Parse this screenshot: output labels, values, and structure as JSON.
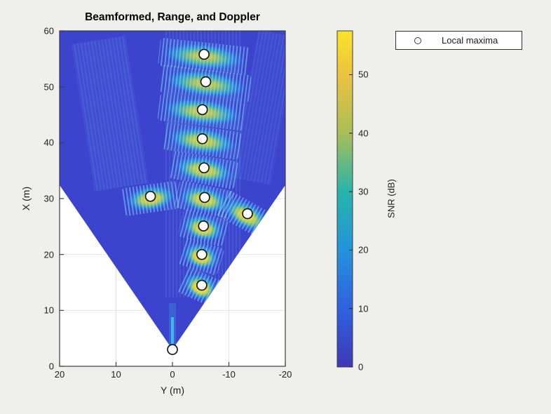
{
  "figure": {
    "title": "Beamformed, Range, and Doppler",
    "background_color": "#efefec"
  },
  "axes": {
    "x": {
      "label": "Y (m)",
      "tick_values": [
        20,
        10,
        0,
        -10,
        -20
      ],
      "range_display": [
        20,
        -20
      ],
      "reversed": true
    },
    "y": {
      "label": "X (m)",
      "tick_values": [
        0,
        10,
        20,
        30,
        40,
        50,
        60
      ],
      "range": [
        0,
        60
      ]
    }
  },
  "colorbar": {
    "label": "SNR (dB)",
    "tick_values": [
      0,
      10,
      20,
      30,
      40,
      50
    ],
    "range": [
      0,
      57.5
    ],
    "colormap": "parula",
    "gradient": [
      [
        0.0,
        "#3e38b5"
      ],
      [
        0.175,
        "#2f62e1"
      ],
      [
        0.35,
        "#2493dc"
      ],
      [
        0.52,
        "#27b4aa"
      ],
      [
        0.7,
        "#aabf56"
      ],
      [
        0.875,
        "#eec23f"
      ],
      [
        1.0,
        "#fbe427"
      ]
    ]
  },
  "legend": {
    "marker": "circle-outline",
    "label": "Local maxima"
  },
  "chart_data": {
    "type": "heatmap",
    "title": "Beamformed, Range, and Doppler",
    "xlabel": "Y (m)",
    "ylabel": "X (m)",
    "x_axis_ticks": [
      20,
      10,
      0,
      -10,
      -20
    ],
    "y_axis_ticks": [
      0,
      10,
      20,
      30,
      40,
      50,
      60
    ],
    "x_axis_reversed": true,
    "snr_range_db": [
      0,
      57.5
    ],
    "grid": true,
    "legend_position": "outside-top-right",
    "beam": {
      "apex_x_m": 3.0,
      "apex_y_m": 0.0,
      "half_angle_deg": 34.5,
      "base_snr_color": "#3c44ce"
    },
    "local_maxima": [
      {
        "x_m": 55.8,
        "y_m": -5.6
      },
      {
        "x_m": 50.9,
        "y_m": -5.9
      },
      {
        "x_m": 45.9,
        "y_m": -5.3
      },
      {
        "x_m": 40.7,
        "y_m": -5.3
      },
      {
        "x_m": 35.5,
        "y_m": -5.6
      },
      {
        "x_m": 30.4,
        "y_m": 3.9
      },
      {
        "x_m": 30.2,
        "y_m": -5.7
      },
      {
        "x_m": 27.3,
        "y_m": -13.3
      },
      {
        "x_m": 25.1,
        "y_m": -5.5
      },
      {
        "x_m": 20.0,
        "y_m": -5.2
      },
      {
        "x_m": 14.5,
        "y_m": -5.2
      },
      {
        "x_m": 3.0,
        "y_m": 0.0,
        "band": false
      }
    ]
  }
}
